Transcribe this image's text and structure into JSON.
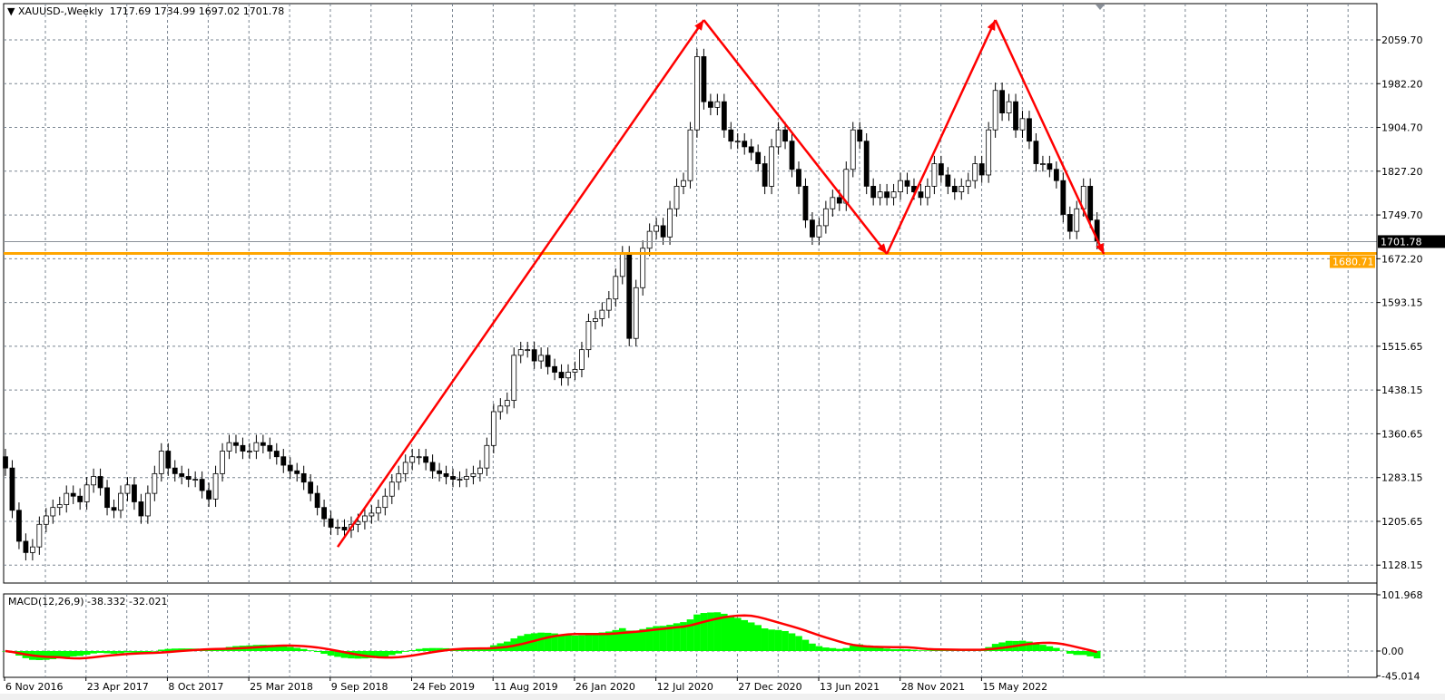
{
  "header": {
    "symbol": "XAUUSD-,Weekly",
    "open": "1717.69",
    "high": "1734.99",
    "low": "1697.02",
    "close": "1701.78"
  },
  "indicator": {
    "label": "MACD(12,26,9)",
    "macd": "-38.332",
    "signal": "-32.021"
  },
  "colors": {
    "background": "#ffffff",
    "grid": "#7a8591",
    "bull_body": "#ffffff",
    "bear_body": "#000000",
    "candle_outline": "#000000",
    "arrows": "#ff0000",
    "support_line": "#ffa500",
    "current_price_line": "#8a9099",
    "macd_histogram": "#00ff00",
    "macd_signal": "#ff0000"
  },
  "chart_data": [
    {
      "type": "candlestick",
      "title": "XAUUSD-,Weekly",
      "ylim": [
        1096,
        2122
      ],
      "y_ticks": [
        "2059.70",
        "1982.20",
        "1904.70",
        "1827.20",
        "1749.70",
        "1672.20",
        "1593.15",
        "1515.65",
        "1438.15",
        "1360.65",
        "1283.15",
        "1205.65",
        "1128.15"
      ],
      "x_ticks": [
        "6 Nov 2016",
        "23 Apr 2017",
        "8 Oct 2017",
        "25 Mar 2018",
        "9 Sep 2018",
        "24 Feb 2019",
        "11 Aug 2019",
        "26 Jan 2020",
        "12 Jul 2020",
        "27 Dec 2020",
        "13 Jun 2021",
        "28 Nov 2021",
        "15 May 2022"
      ],
      "grid": true,
      "closes": [
        1300,
        1225,
        1170,
        1150,
        1160,
        1200,
        1215,
        1230,
        1235,
        1255,
        1250,
        1240,
        1270,
        1285,
        1265,
        1230,
        1225,
        1255,
        1270,
        1240,
        1215,
        1255,
        1290,
        1330,
        1300,
        1290,
        1285,
        1280,
        1280,
        1260,
        1245,
        1290,
        1330,
        1345,
        1340,
        1330,
        1330,
        1345,
        1340,
        1330,
        1320,
        1305,
        1295,
        1290,
        1275,
        1255,
        1230,
        1210,
        1195,
        1195,
        1190,
        1200,
        1205,
        1215,
        1220,
        1230,
        1250,
        1275,
        1290,
        1310,
        1320,
        1320,
        1310,
        1295,
        1290,
        1285,
        1280,
        1280,
        1285,
        1290,
        1300,
        1340,
        1400,
        1410,
        1420,
        1500,
        1510,
        1510,
        1490,
        1500,
        1480,
        1470,
        1460,
        1470,
        1475,
        1510,
        1560,
        1565,
        1580,
        1600,
        1640,
        1680,
        1530,
        1620,
        1690,
        1720,
        1730,
        1710,
        1760,
        1800,
        1810,
        1900,
        2030,
        1950,
        1940,
        1950,
        1900,
        1880,
        1880,
        1870,
        1860,
        1840,
        1800,
        1870,
        1900,
        1880,
        1830,
        1800,
        1740,
        1710,
        1730,
        1760,
        1780,
        1770,
        1830,
        1900,
        1880,
        1800,
        1780,
        1790,
        1780,
        1790,
        1810,
        1800,
        1790,
        1780,
        1800,
        1840,
        1820,
        1800,
        1790,
        1800,
        1810,
        1840,
        1820,
        1900,
        1970,
        1930,
        1950,
        1900,
        1920,
        1880,
        1840,
        1840,
        1830,
        1810,
        1750,
        1720,
        1760,
        1800,
        1740,
        1702
      ],
      "last_price": "1701.78",
      "support_level": "1680.71",
      "annotations": {
        "arrow_path": [
          {
            "index": 49,
            "price": 1160
          },
          {
            "index": 103,
            "price": 2095
          },
          {
            "index": 130,
            "price": 1680
          },
          {
            "index": 146,
            "price": 2095
          },
          {
            "index": 162,
            "price": 1680
          }
        ]
      }
    },
    {
      "type": "bar+line",
      "title": "MACD(12,26,9)",
      "ylim": [
        -45.014,
        101.968
      ],
      "y_ticks": [
        "101.968",
        "0.00",
        "-45.014"
      ],
      "series": [
        {
          "name": "MACD",
          "source": "histogram"
        },
        {
          "name": "Signal",
          "source": "line"
        }
      ]
    }
  ]
}
